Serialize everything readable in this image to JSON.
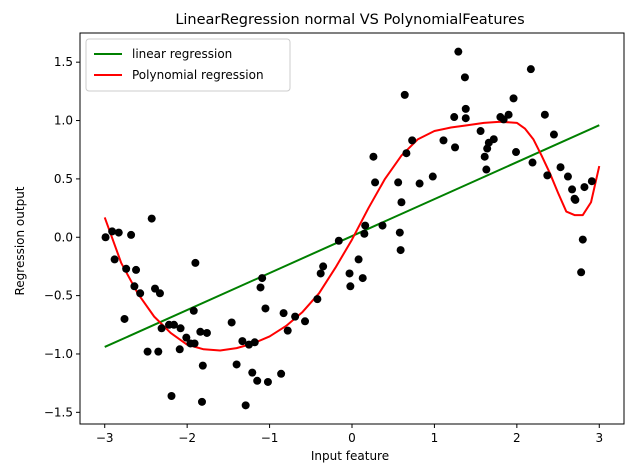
{
  "chart_data": {
    "type": "scatter",
    "title": "LinearRegression normal VS PolynomialFeatures",
    "xlabel": "Input feature",
    "ylabel": "Regression output",
    "xlim": [
      -3.3,
      3.3
    ],
    "ylim": [
      -1.6,
      1.75
    ],
    "xticks": [
      -3,
      -2,
      -1,
      0,
      1,
      2,
      3
    ],
    "yticks": [
      -1.5,
      -1.0,
      -0.5,
      0.0,
      0.5,
      1.0,
      1.5
    ],
    "grid": false,
    "legend_position": "top-left",
    "series": [
      {
        "name": "linear regression",
        "kind": "line",
        "color": "#008000",
        "x": [
          -3.0,
          3.0
        ],
        "y": [
          -0.94,
          0.96
        ]
      },
      {
        "name": "Polynomial regression",
        "kind": "line",
        "color": "#ff0000",
        "x": [
          -3.0,
          -2.8,
          -2.6,
          -2.4,
          -2.2,
          -2.0,
          -1.8,
          -1.6,
          -1.4,
          -1.2,
          -1.0,
          -0.8,
          -0.6,
          -0.4,
          -0.2,
          0.0,
          0.2,
          0.4,
          0.6,
          0.8,
          1.0,
          1.2,
          1.4,
          1.6,
          1.8,
          2.0,
          2.1,
          2.2,
          2.3,
          2.4,
          2.5,
          2.6,
          2.7,
          2.8,
          2.9,
          3.0
        ],
        "y": [
          0.17,
          -0.22,
          -0.48,
          -0.68,
          -0.82,
          -0.92,
          -0.96,
          -0.97,
          -0.95,
          -0.91,
          -0.85,
          -0.76,
          -0.64,
          -0.48,
          -0.26,
          -0.02,
          0.25,
          0.5,
          0.7,
          0.84,
          0.91,
          0.94,
          0.96,
          0.98,
          0.99,
          0.98,
          0.93,
          0.84,
          0.7,
          0.55,
          0.38,
          0.22,
          0.19,
          0.19,
          0.3,
          0.61
        ]
      },
      {
        "name": "",
        "kind": "scatter",
        "color": "#000000",
        "x": [
          -2.99,
          -2.91,
          -2.88,
          -2.83,
          -2.76,
          -2.74,
          -2.68,
          -2.64,
          -2.62,
          -2.57,
          -2.48,
          -2.43,
          -2.39,
          -2.35,
          -2.33,
          -2.31,
          -2.22,
          -2.19,
          -2.16,
          -2.09,
          -2.08,
          -2.01,
          -1.96,
          -1.92,
          -1.91,
          -1.9,
          -1.84,
          -1.81,
          -1.82,
          -1.76,
          -1.46,
          -1.4,
          -1.33,
          -1.29,
          -1.25,
          -1.21,
          -1.18,
          -1.15,
          -1.11,
          -1.09,
          -1.05,
          -1.02,
          -0.86,
          -0.83,
          -0.78,
          -0.69,
          -0.57,
          -0.42,
          -0.38,
          -0.35,
          -0.16,
          -0.02,
          -0.03,
          0.08,
          0.13,
          0.15,
          0.16,
          0.26,
          0.28,
          0.37,
          0.56,
          0.58,
          0.59,
          0.6,
          0.64,
          0.66,
          0.73,
          0.82,
          0.98,
          1.11,
          1.25,
          1.24,
          1.29,
          1.37,
          1.38,
          1.38,
          1.56,
          1.61,
          1.63,
          1.64,
          1.66,
          1.72,
          1.8,
          1.84,
          1.9,
          1.96,
          1.99,
          2.17,
          2.19,
          2.34,
          2.37,
          2.45,
          2.53,
          2.62,
          2.67,
          2.7,
          2.71,
          2.78,
          2.8,
          2.82,
          2.91
        ],
        "y": [
          0.0,
          0.05,
          -0.19,
          0.04,
          -0.7,
          -0.27,
          0.02,
          -0.42,
          -0.28,
          -0.48,
          -0.98,
          0.16,
          -0.44,
          -0.98,
          -0.48,
          -0.78,
          -0.75,
          -1.36,
          -0.75,
          -0.96,
          -0.78,
          -0.86,
          -0.91,
          -0.63,
          -0.91,
          -0.22,
          -0.81,
          -1.1,
          -1.41,
          -0.82,
          -0.73,
          -1.09,
          -0.89,
          -1.44,
          -0.92,
          -1.16,
          -0.9,
          -1.23,
          -0.43,
          -0.35,
          -0.61,
          -1.24,
          -1.17,
          -0.65,
          -0.8,
          -0.68,
          -0.72,
          -0.53,
          -0.31,
          -0.25,
          -0.03,
          -0.42,
          -0.31,
          -0.19,
          -0.35,
          0.03,
          0.1,
          0.69,
          0.47,
          0.1,
          0.47,
          0.04,
          -0.11,
          0.3,
          1.22,
          0.72,
          0.83,
          0.46,
          0.52,
          0.83,
          0.77,
          1.03,
          1.59,
          1.37,
          1.02,
          1.1,
          0.91,
          0.69,
          0.58,
          0.76,
          0.81,
          0.84,
          1.03,
          1.01,
          1.05,
          1.19,
          0.73,
          1.44,
          0.64,
          1.05,
          0.53,
          0.88,
          0.6,
          0.52,
          0.41,
          0.33,
          0.32,
          -0.3,
          -0.02,
          0.43,
          0.48
        ]
      }
    ]
  }
}
